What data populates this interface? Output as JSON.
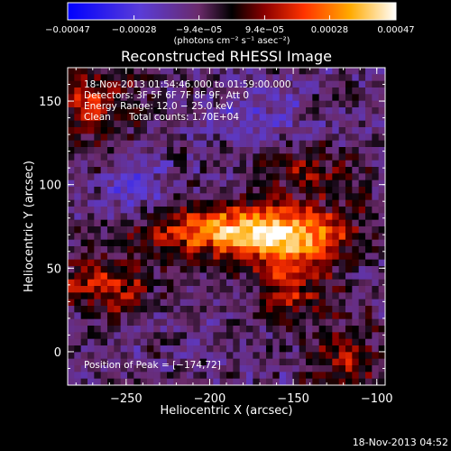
{
  "chart_data": {
    "type": "heatmap",
    "title": "Reconstructed RHESSI Image",
    "xlabel": "Heliocentric X (arcsec)",
    "ylabel": "Heliocentric Y (arcsec)",
    "xlim": [
      -285,
      -95
    ],
    "ylim": [
      -20,
      170
    ],
    "x_ticks": [
      -250,
      -200,
      -150,
      -100
    ],
    "x_tick_labels": [
      "−250",
      "−200",
      "−150",
      "−100"
    ],
    "y_ticks": [
      0,
      50,
      100,
      150
    ],
    "y_tick_labels": [
      "0",
      "50",
      "100",
      "150"
    ],
    "colorbar": {
      "range": [
        -0.00047,
        0.00047
      ],
      "ticks": [
        -0.00047,
        -0.00028,
        -9.4e-05,
        9.4e-05,
        0.00028,
        0.00047
      ],
      "tick_labels": [
        "−0.00047",
        "−0.00028",
        "−9.4e−05",
        "9.4e−05",
        "0.00028",
        "0.00047"
      ],
      "units": "(photons cm⁻² s⁻¹ asec⁻²)",
      "colors": [
        "#0000ff",
        "#6a32c8",
        "#6a2a6a",
        "#000000",
        "#8b0000",
        "#ff3300",
        "#ffaa00",
        "#ffffff"
      ]
    },
    "peak": {
      "x": -174,
      "y": 72
    },
    "grid": false
  },
  "annotations": {
    "time_range": "18-Nov-2013 01:54:46.000 to 01:59:00.000",
    "detectors": "Detectors: 3F 5F 6F 7F 8F 9F, Att 0",
    "energy_range": "Energy Range: 12.0 − 25.0 keV",
    "clean_label": "Clean",
    "total_counts": "Total counts: 1.70E+04",
    "peak_position": "Position of Peak = [−174,72]"
  },
  "footer": {
    "timestamp": "18-Nov-2013 04:52"
  }
}
